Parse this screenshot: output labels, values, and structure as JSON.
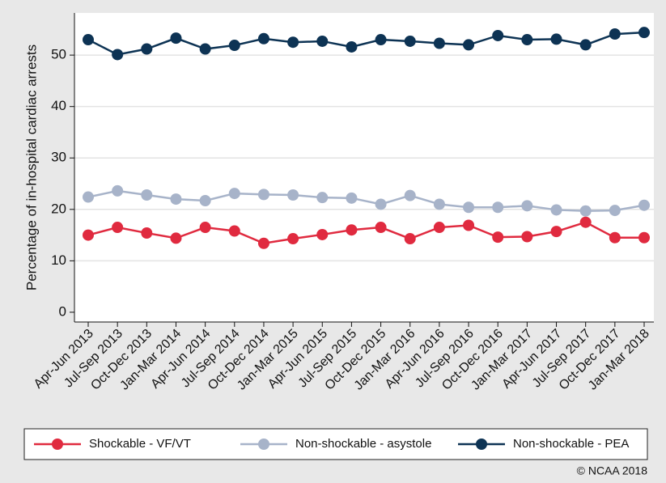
{
  "chart_data": {
    "type": "line",
    "y_label": "Percentage of in-hospital cardiac arrests",
    "credit": "© NCAA 2018",
    "categories": [
      "Apr-Jun 2013",
      "Jul-Sep 2013",
      "Oct-Dec 2013",
      "Jan-Mar 2014",
      "Apr-Jun 2014",
      "Jul-Sep 2014",
      "Oct-Dec 2014",
      "Jan-Mar 2015",
      "Apr-Jun 2015",
      "Jul-Sep 2015",
      "Oct-Dec 2015",
      "Jan-Mar 2016",
      "Apr-Jun 2016",
      "Jul-Sep 2016",
      "Oct-Dec 2016",
      "Jan-Mar 2017",
      "Apr-Jun 2017",
      "Jul-Sep 2017",
      "Oct-Dec 2017",
      "Jan-Mar 2018"
    ],
    "series": [
      {
        "name": "Shockable - VF/VT",
        "color": "#e02a3f",
        "values": [
          15.0,
          16.5,
          15.4,
          14.4,
          16.5,
          15.8,
          13.4,
          14.3,
          15.1,
          16.0,
          16.5,
          14.3,
          16.5,
          16.9,
          14.6,
          14.7,
          15.7,
          17.5,
          14.5,
          14.5
        ]
      },
      {
        "name": "Non-shockable - asystole",
        "color": "#a7b3c9",
        "values": [
          22.4,
          23.6,
          22.8,
          22.0,
          21.7,
          23.1,
          22.9,
          22.8,
          22.3,
          22.2,
          21.0,
          22.7,
          21.0,
          20.4,
          20.4,
          20.7,
          19.9,
          19.7,
          19.8,
          20.8
        ]
      },
      {
        "name": "Non-shockable - PEA",
        "color": "#0d3354",
        "values": [
          53.0,
          50.1,
          51.2,
          53.3,
          51.2,
          51.9,
          53.2,
          52.5,
          52.7,
          51.6,
          53.0,
          52.7,
          52.3,
          52.0,
          53.8,
          53.0,
          53.1,
          52.0,
          54.1,
          54.4
        ]
      }
    ],
    "ylim": [
      -1.9,
      58.2
    ],
    "yticks": [
      0,
      10,
      20,
      30,
      40,
      50
    ],
    "grid": true,
    "legend": "bottom"
  }
}
